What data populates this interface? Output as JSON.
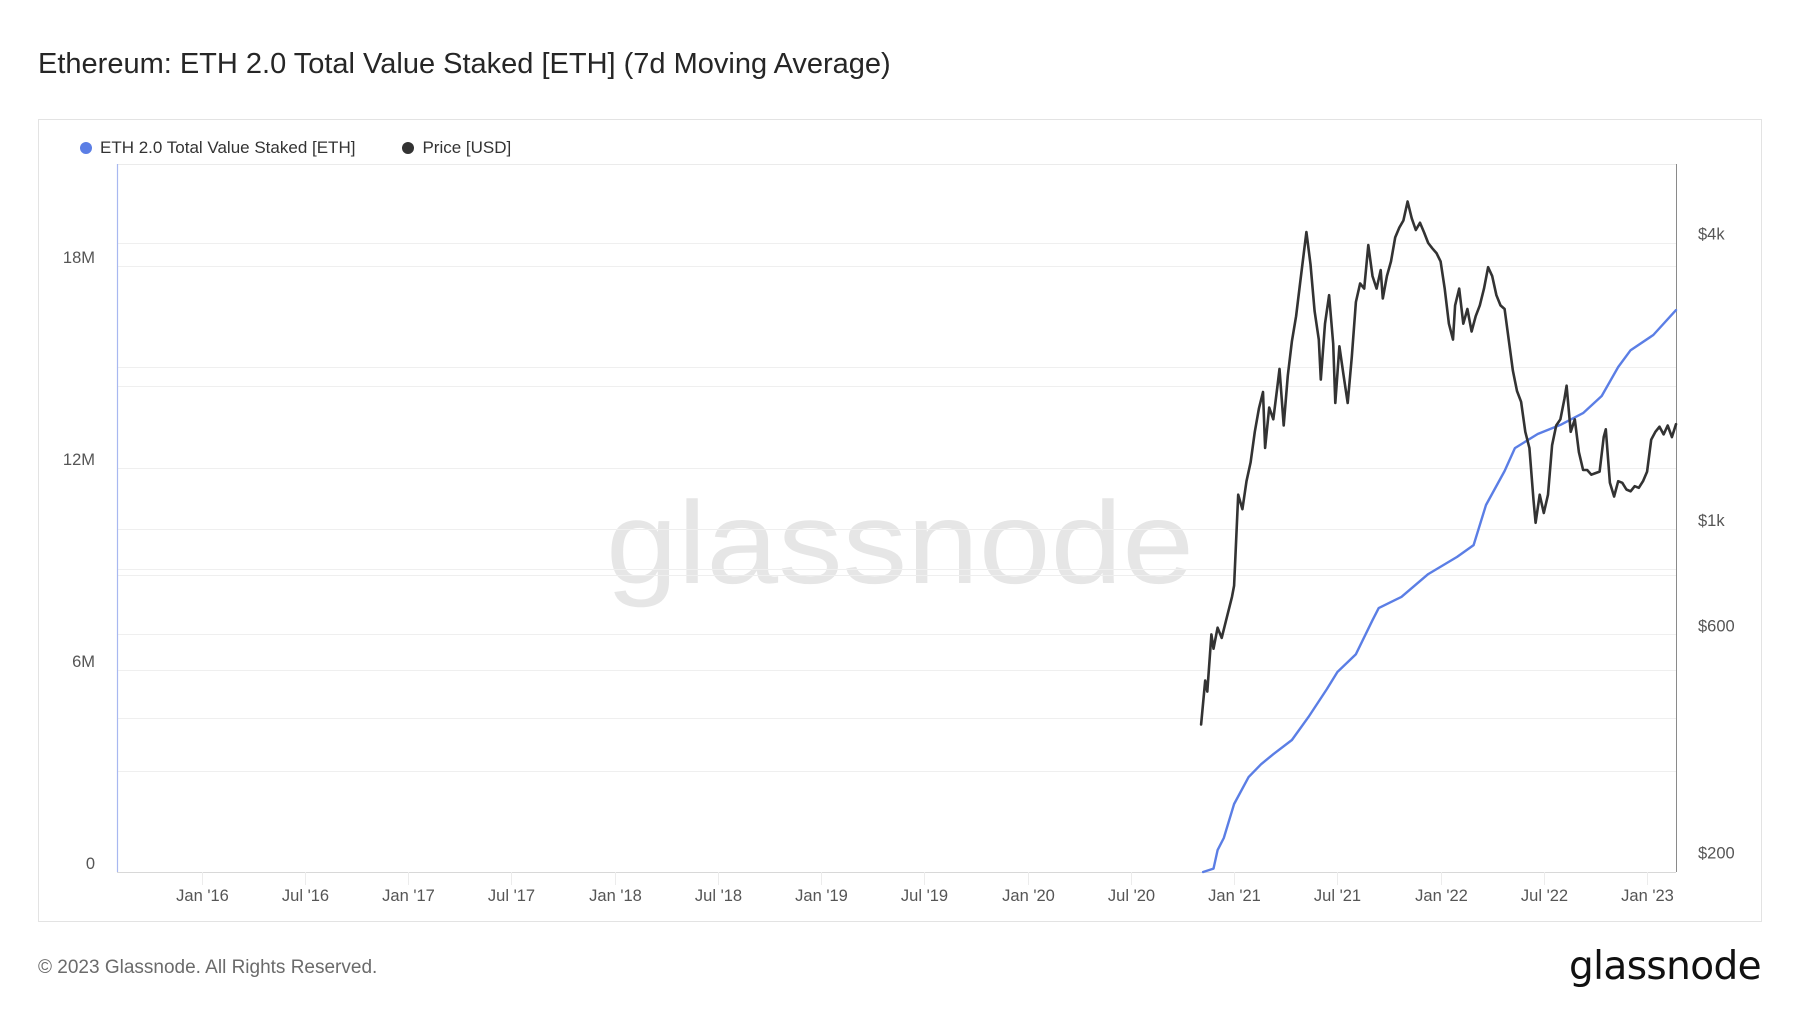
{
  "title": "Ethereum: ETH 2.0 Total Value Staked [ETH] (7d Moving Average)",
  "legend": [
    {
      "label": "ETH 2.0 Total Value Staked [ETH]",
      "color": "#5b7ee5"
    },
    {
      "label": "Price [USD]",
      "color": "#333333"
    }
  ],
  "watermark": "glassnode",
  "footer": {
    "copyright": "© 2023 Glassnode. All Rights Reserved.",
    "logo": "glassnode"
  },
  "chart_data": {
    "type": "line",
    "title": "Ethereum: ETH 2.0 Total Value Staked [ETH] (7d Moving Average)",
    "xlabel": "",
    "x_unit": "year",
    "xlim": [
      2015.59,
      2023.14
    ],
    "x_ticks": [
      {
        "label": "Jan '16",
        "x": 2016.0
      },
      {
        "label": "Jul '16",
        "x": 2016.5
      },
      {
        "label": "Jan '17",
        "x": 2017.0
      },
      {
        "label": "Jul '17",
        "x": 2017.5
      },
      {
        "label": "Jan '18",
        "x": 2018.0
      },
      {
        "label": "Jul '18",
        "x": 2018.5
      },
      {
        "label": "Jan '19",
        "x": 2019.0
      },
      {
        "label": "Jul '19",
        "x": 2019.5
      },
      {
        "label": "Jan '20",
        "x": 2020.0
      },
      {
        "label": "Jul '20",
        "x": 2020.5
      },
      {
        "label": "Jan '21",
        "x": 2021.0
      },
      {
        "label": "Jul '21",
        "x": 2021.5
      },
      {
        "label": "Jan '22",
        "x": 2022.0
      },
      {
        "label": "Jul '22",
        "x": 2022.5
      },
      {
        "label": "Jan '23",
        "x": 2023.0
      }
    ],
    "y_left": {
      "label": "ETH 2.0 Total Value Staked [ETH]",
      "scale": "linear",
      "lim": [
        0,
        21030000
      ],
      "ticks": [
        {
          "label": "0",
          "value": 0
        },
        {
          "label": "6M",
          "value": 6000000
        },
        {
          "label": "12M",
          "value": 12000000
        },
        {
          "label": "18M",
          "value": 18000000
        }
      ],
      "grid": [
        0,
        3000000,
        6000000,
        9000000,
        12000000,
        15000000,
        18000000
      ]
    },
    "y_right": {
      "label": "Price [USD]",
      "scale": "log",
      "lim": [
        190,
        5850
      ],
      "ticks": [
        {
          "label": "$200",
          "value": 200
        },
        {
          "label": "$600",
          "value": 600
        },
        {
          "label": "$1k",
          "value": 1000
        },
        {
          "label": "$4k",
          "value": 4000
        }
      ],
      "grid": [
        400,
        600,
        800,
        1000,
        2000,
        4000
      ]
    },
    "grid": true,
    "legend_position": "top-left",
    "series": [
      {
        "name": "ETH 2.0 Total Value Staked [ETH]",
        "axis": "left",
        "color": "#5b7ee5",
        "points": [
          [
            2020.85,
            0
          ],
          [
            2020.9,
            100000
          ],
          [
            2020.92,
            650000
          ],
          [
            2020.95,
            1010000
          ],
          [
            2021.0,
            2020000
          ],
          [
            2021.07,
            2820000
          ],
          [
            2021.13,
            3200000
          ],
          [
            2021.19,
            3500000
          ],
          [
            2021.28,
            3920000
          ],
          [
            2021.36,
            4600000
          ],
          [
            2021.45,
            5440000
          ],
          [
            2021.5,
            5940000
          ],
          [
            2021.59,
            6470000
          ],
          [
            2021.67,
            7480000
          ],
          [
            2021.7,
            7840000
          ],
          [
            2021.81,
            8170000
          ],
          [
            2021.94,
            8850000
          ],
          [
            2022.08,
            9360000
          ],
          [
            2022.16,
            9710000
          ],
          [
            2022.22,
            10900000
          ],
          [
            2022.31,
            11910000
          ],
          [
            2022.36,
            12590000
          ],
          [
            2022.47,
            13010000
          ],
          [
            2022.58,
            13280000
          ],
          [
            2022.69,
            13630000
          ],
          [
            2022.78,
            14140000
          ],
          [
            2022.86,
            15000000
          ],
          [
            2022.92,
            15500000
          ],
          [
            2023.03,
            15950000
          ],
          [
            2023.14,
            16690000
          ]
        ]
      },
      {
        "name": "Price [USD]",
        "axis": "right",
        "color": "#333333",
        "points": [
          [
            2020.84,
            388
          ],
          [
            2020.86,
            480
          ],
          [
            2020.87,
            455
          ],
          [
            2020.89,
            600
          ],
          [
            2020.9,
            560
          ],
          [
            2020.92,
            620
          ],
          [
            2020.94,
            590
          ],
          [
            2020.96,
            640
          ],
          [
            2020.99,
            720
          ],
          [
            2021.0,
            760
          ],
          [
            2021.02,
            1180
          ],
          [
            2021.04,
            1100
          ],
          [
            2021.06,
            1260
          ],
          [
            2021.08,
            1380
          ],
          [
            2021.1,
            1600
          ],
          [
            2021.12,
            1790
          ],
          [
            2021.14,
            1940
          ],
          [
            2021.15,
            1480
          ],
          [
            2021.17,
            1800
          ],
          [
            2021.19,
            1700
          ],
          [
            2021.21,
            2000
          ],
          [
            2021.22,
            2170
          ],
          [
            2021.24,
            1650
          ],
          [
            2021.26,
            2100
          ],
          [
            2021.28,
            2480
          ],
          [
            2021.3,
            2800
          ],
          [
            2021.32,
            3300
          ],
          [
            2021.35,
            4210
          ],
          [
            2021.37,
            3600
          ],
          [
            2021.39,
            2870
          ],
          [
            2021.41,
            2500
          ],
          [
            2021.42,
            2060
          ],
          [
            2021.44,
            2700
          ],
          [
            2021.46,
            3100
          ],
          [
            2021.48,
            2450
          ],
          [
            2021.49,
            1840
          ],
          [
            2021.51,
            2420
          ],
          [
            2021.53,
            2100
          ],
          [
            2021.55,
            1840
          ],
          [
            2021.57,
            2300
          ],
          [
            2021.59,
            3000
          ],
          [
            2021.61,
            3280
          ],
          [
            2021.63,
            3200
          ],
          [
            2021.65,
            3950
          ],
          [
            2021.67,
            3400
          ],
          [
            2021.69,
            3200
          ],
          [
            2021.71,
            3500
          ],
          [
            2021.72,
            3050
          ],
          [
            2021.74,
            3400
          ],
          [
            2021.76,
            3650
          ],
          [
            2021.78,
            4100
          ],
          [
            2021.8,
            4300
          ],
          [
            2021.82,
            4450
          ],
          [
            2021.84,
            4880
          ],
          [
            2021.86,
            4500
          ],
          [
            2021.88,
            4250
          ],
          [
            2021.9,
            4400
          ],
          [
            2021.92,
            4200
          ],
          [
            2021.94,
            3990
          ],
          [
            2021.96,
            3890
          ],
          [
            2021.98,
            3800
          ],
          [
            2022.0,
            3650
          ],
          [
            2022.02,
            3200
          ],
          [
            2022.04,
            2700
          ],
          [
            2022.06,
            2500
          ],
          [
            2022.07,
            2950
          ],
          [
            2022.09,
            3200
          ],
          [
            2022.11,
            2700
          ],
          [
            2022.13,
            2900
          ],
          [
            2022.15,
            2600
          ],
          [
            2022.17,
            2800
          ],
          [
            2022.19,
            2950
          ],
          [
            2022.21,
            3200
          ],
          [
            2022.23,
            3550
          ],
          [
            2022.25,
            3400
          ],
          [
            2022.27,
            3100
          ],
          [
            2022.29,
            2950
          ],
          [
            2022.31,
            2900
          ],
          [
            2022.33,
            2500
          ],
          [
            2022.35,
            2150
          ],
          [
            2022.37,
            1950
          ],
          [
            2022.39,
            1850
          ],
          [
            2022.41,
            1600
          ],
          [
            2022.43,
            1480
          ],
          [
            2022.45,
            1150
          ],
          [
            2022.46,
            1030
          ],
          [
            2022.48,
            1180
          ],
          [
            2022.5,
            1080
          ],
          [
            2022.52,
            1180
          ],
          [
            2022.54,
            1500
          ],
          [
            2022.56,
            1650
          ],
          [
            2022.58,
            1700
          ],
          [
            2022.6,
            1880
          ],
          [
            2022.61,
            2000
          ],
          [
            2022.63,
            1600
          ],
          [
            2022.65,
            1700
          ],
          [
            2022.67,
            1450
          ],
          [
            2022.69,
            1330
          ],
          [
            2022.71,
            1330
          ],
          [
            2022.73,
            1300
          ],
          [
            2022.75,
            1310
          ],
          [
            2022.77,
            1320
          ],
          [
            2022.79,
            1560
          ],
          [
            2022.8,
            1620
          ],
          [
            2022.82,
            1250
          ],
          [
            2022.84,
            1170
          ],
          [
            2022.86,
            1260
          ],
          [
            2022.88,
            1250
          ],
          [
            2022.9,
            1210
          ],
          [
            2022.92,
            1200
          ],
          [
            2022.94,
            1230
          ],
          [
            2022.96,
            1220
          ],
          [
            2022.98,
            1260
          ],
          [
            2023.0,
            1320
          ],
          [
            2023.02,
            1540
          ],
          [
            2023.04,
            1600
          ],
          [
            2023.06,
            1640
          ],
          [
            2023.08,
            1580
          ],
          [
            2023.1,
            1650
          ],
          [
            2023.12,
            1560
          ],
          [
            2023.14,
            1660
          ]
        ]
      }
    ]
  }
}
